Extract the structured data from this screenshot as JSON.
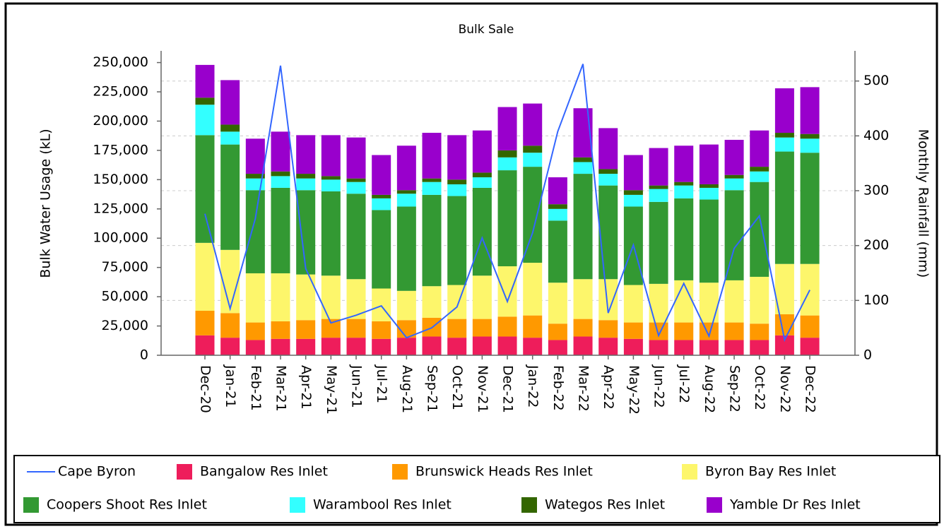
{
  "chart_data": {
    "type": "bar",
    "stacked": true,
    "title": "Bulk Sale",
    "y_label": "Bulk Water Usage (kL)",
    "y2_label": "Monthly Rainfall (mm)",
    "categories": [
      "Dec-20",
      "Jan-21",
      "Feb-21",
      "Mar-21",
      "Apr-21",
      "May-21",
      "Jun-21",
      "Jul-21",
      "Aug-21",
      "Sep-21",
      "Oct-21",
      "Nov-21",
      "Dec-21",
      "Jan-22",
      "Feb-22",
      "Mar-22",
      "Apr-22",
      "May-22",
      "Jun-22",
      "Jul-22",
      "Aug-22",
      "Sep-22",
      "Oct-22",
      "Nov-22",
      "Dec-22"
    ],
    "series": [
      {
        "name": "Cape Byron",
        "type": "line",
        "axis": "y2",
        "color": "#3366ff",
        "values": [
          258,
          85,
          249,
          528,
          158,
          59,
          73,
          90,
          32,
          50,
          88,
          214,
          98,
          223,
          408,
          531,
          77,
          201,
          36,
          131,
          35,
          195,
          254,
          28,
          119
        ]
      },
      {
        "name": "Bangalow Res Inlet",
        "color": "#ee1d5b",
        "values": [
          17000,
          15000,
          13000,
          14000,
          14000,
          15000,
          15000,
          14000,
          15000,
          16000,
          15000,
          16000,
          16000,
          15000,
          13000,
          16000,
          15000,
          14000,
          13000,
          13000,
          13000,
          13000,
          13000,
          17000,
          15000
        ]
      },
      {
        "name": "Brunswick Heads Res Inlet",
        "color": "#ff9900",
        "values": [
          21000,
          21000,
          15000,
          15000,
          16000,
          16000,
          16000,
          15000,
          15000,
          16000,
          16000,
          15000,
          17000,
          19000,
          14000,
          15000,
          15000,
          14000,
          15000,
          15000,
          15000,
          15000,
          14000,
          18000,
          19000
        ]
      },
      {
        "name": "Byron Bay Res Inlet",
        "color": "#fdf66b",
        "values": [
          58000,
          54000,
          42000,
          41000,
          39000,
          37000,
          34000,
          28000,
          25000,
          27000,
          29000,
          37000,
          43000,
          45000,
          35000,
          34000,
          35000,
          32000,
          33000,
          36000,
          34000,
          36000,
          40000,
          43000,
          44000
        ]
      },
      {
        "name": "Coopers Shoot Res Inlet",
        "color": "#339933",
        "values": [
          92000,
          90000,
          71000,
          73000,
          72000,
          72000,
          73000,
          67000,
          72000,
          78000,
          76000,
          75000,
          82000,
          82000,
          53000,
          90000,
          80000,
          67000,
          70000,
          70000,
          71000,
          77000,
          81000,
          96000,
          95000
        ]
      },
      {
        "name": "Warambool Res Inlet",
        "color": "#33ffff",
        "values": [
          26000,
          11000,
          10000,
          10000,
          10000,
          10000,
          10000,
          10000,
          11000,
          11000,
          10000,
          9000,
          11000,
          12000,
          10000,
          10000,
          10000,
          10000,
          11000,
          11000,
          10000,
          10000,
          9000,
          12000,
          12000
        ]
      },
      {
        "name": "Wategos Res Inlet",
        "color": "#336600",
        "values": [
          6000,
          6000,
          4000,
          4000,
          4000,
          3000,
          3000,
          3000,
          3000,
          3000,
          4000,
          4000,
          6000,
          6000,
          4000,
          4000,
          4000,
          4000,
          3000,
          3000,
          3000,
          3000,
          4000,
          4000,
          4000
        ]
      },
      {
        "name": "Yamble Dr Res Inlet",
        "color": "#9900cc",
        "values": [
          28000,
          38000,
          30000,
          34000,
          33000,
          35000,
          35000,
          34000,
          38000,
          39000,
          38000,
          36000,
          37000,
          36000,
          23000,
          42000,
          35000,
          30000,
          32000,
          31000,
          34000,
          30000,
          31000,
          38000,
          40000
        ]
      }
    ],
    "ylim": [
      0,
      260000
    ],
    "yticks": [
      0,
      {
        "value": 25000,
        "label": "25,000"
      },
      {
        "value": 50000,
        "label": "50,000"
      },
      {
        "value": 75000,
        "label": "75,000"
      },
      {
        "value": 100000,
        "label": "100,000"
      },
      {
        "value": 125000,
        "label": "125,000"
      },
      {
        "value": 150000,
        "label": "150,000"
      },
      {
        "value": 175000,
        "label": "175,000"
      },
      {
        "value": 200000,
        "label": "200,000"
      },
      {
        "value": 225000,
        "label": "225,000"
      },
      {
        "value": 250000,
        "label": "250,000"
      }
    ],
    "y2lim": [
      0,
      555
    ],
    "y2ticks": [
      0,
      100,
      200,
      300,
      400,
      500
    ],
    "grid": true,
    "legend": "bottom"
  }
}
